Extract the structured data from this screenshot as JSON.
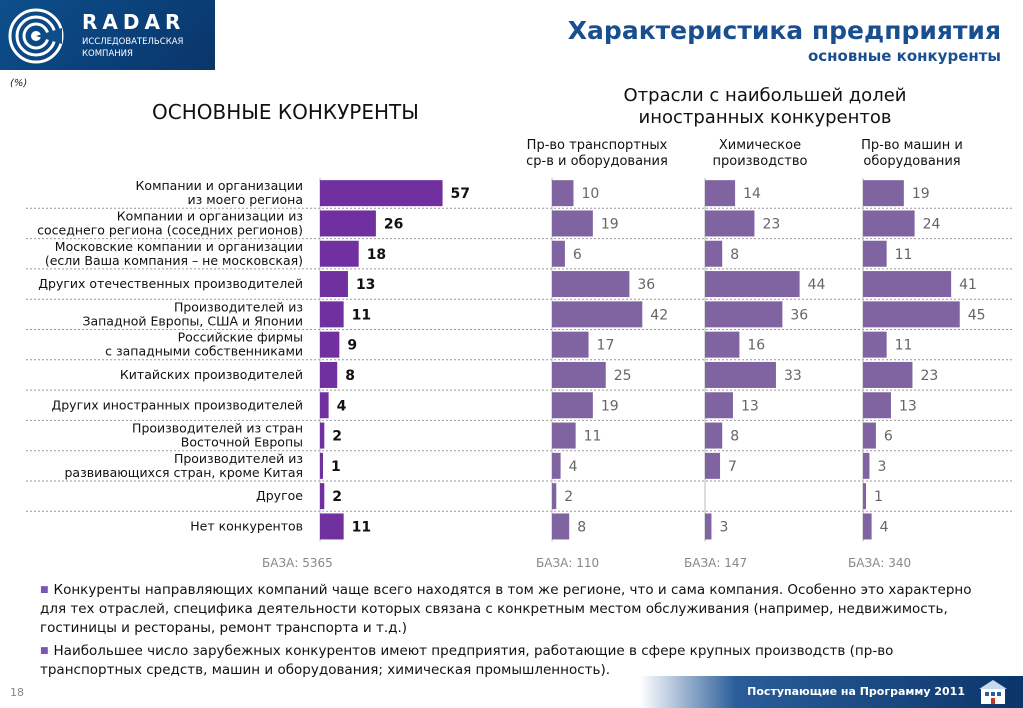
{
  "header": {
    "logo_name": "RADAR",
    "logo_subtitle": "ИССЛЕДОВАТЕЛЬСКАЯ КОМПАНИЯ",
    "title": "Характеристика предприятия",
    "subtitle": "основные конкуренты"
  },
  "unit_label": "(%)",
  "competitors_title": "ОСНОВНЫЕ КОНКУРЕНТЫ",
  "industries_title": "Отрасли  с наибольшей долей иностранных конкурентов",
  "colors": {
    "main_bar": "#7030a0",
    "industry_bar": "#8064a2",
    "brand_blue": "#1a4f8f"
  },
  "chart_data": {
    "type": "bar",
    "orientation": "horizontal",
    "categories": [
      "Компании и организации\nиз моего региона",
      "Компании и организации из\nсоседнего региона (соседних регионов)",
      "Московские компании и организации\n(если Ваша компания – не московская)",
      "Других отечественных производителей",
      "Производителей из\nЗападной Европы, США и Японии",
      "Российские фирмы\nс западными собственниками",
      "Китайских производителей",
      "Других иностранных производителей",
      "Производителей из стран\nВосточной Европы",
      "Производителей из\nразвивающихся стран, кроме Китая",
      "Другое",
      "Нет конкурентов"
    ],
    "series": [
      {
        "name": "",
        "base": "БАЗА: 5365",
        "values": [
          57,
          26,
          18,
          13,
          11,
          9,
          8,
          4,
          2,
          1,
          2,
          11
        ]
      },
      {
        "name": "Пр-во транспортных\nср-в и оборудования",
        "base": "БАЗА: 110",
        "values": [
          10,
          19,
          6,
          36,
          42,
          17,
          25,
          19,
          11,
          4,
          2,
          8
        ]
      },
      {
        "name": "Химическое\nпроизводство",
        "base": "БАЗА: 147",
        "values": [
          14,
          23,
          8,
          44,
          36,
          16,
          33,
          13,
          8,
          7,
          null,
          3
        ]
      },
      {
        "name": "Пр-во машин и\nоборудования",
        "base": "БАЗА: 340",
        "values": [
          19,
          24,
          11,
          41,
          45,
          11,
          23,
          13,
          6,
          3,
          1,
          4
        ]
      }
    ]
  },
  "notes": [
    "Конкуренты направляющих компаний чаще всего находятся в том же регионе, что и сама компания. Особенно это характерно для тех отраслей, специфика деятельности которых связана с конкретным местом обслуживания (например, недвижимость, гостиницы и рестораны, ремонт транспорта и т.д.)",
    "Наибольшее число зарубежных конкурентов имеют предприятия, работающие в сфере крупных производств (пр-во транспортных средств, машин и оборудования; химическая промышленность)."
  ],
  "page_number": "18",
  "footer_text": "Поступающие на Программу 2011"
}
